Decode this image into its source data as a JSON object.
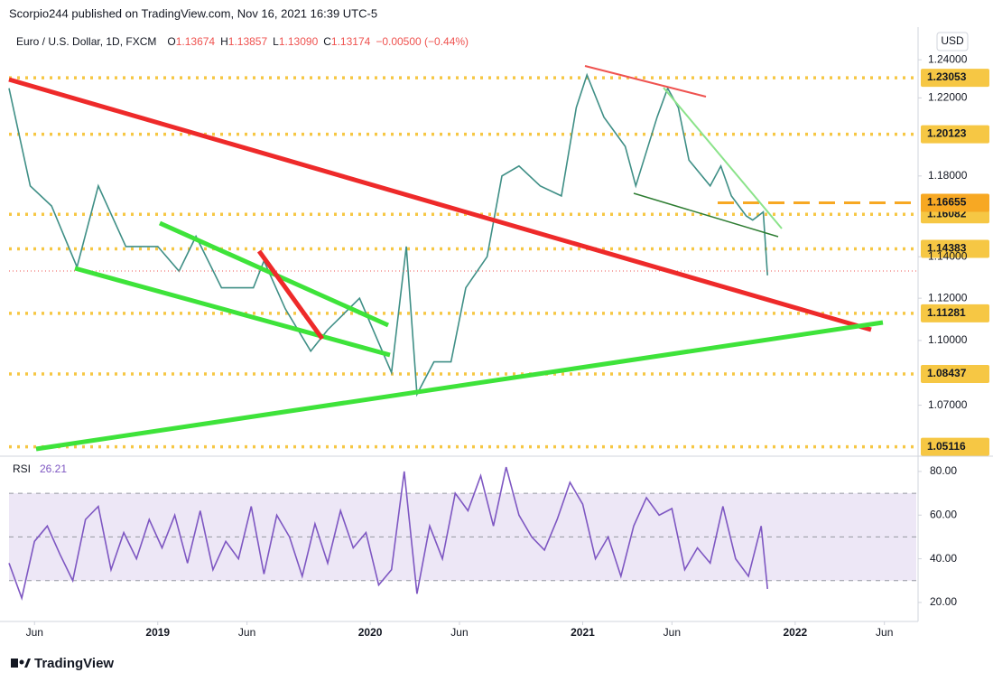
{
  "header": {
    "published": "Scorpio244 published on TradingView.com, Nov 16, 2021 16:39 UTC-5",
    "symbol": "Euro / U.S. Dollar, 1D, FXCM",
    "ohlc": [
      [
        "O",
        "1.13674"
      ],
      [
        "H",
        "1.13857"
      ],
      [
        "L",
        "1.13090"
      ],
      [
        "C",
        "1.13174"
      ]
    ],
    "change": "−0.00500 (−0.44%)",
    "currency": "USD"
  },
  "footer": {
    "brand": "TradingView"
  },
  "chart_data": [
    {
      "type": "line",
      "log_scale": true,
      "color": "#3f8f86",
      "x": [
        2018.3,
        2018.4,
        2018.5,
        2018.62,
        2018.72,
        2018.85,
        2019.0,
        2019.1,
        2019.18,
        2019.3,
        2019.45,
        2019.5,
        2019.6,
        2019.72,
        2019.8,
        2019.95,
        2020.1,
        2020.17,
        2020.22,
        2020.3,
        2020.38,
        2020.45,
        2020.55,
        2020.62,
        2020.7,
        2020.8,
        2020.9,
        2020.97,
        2021.02,
        2021.1,
        2021.2,
        2021.25,
        2021.35,
        2021.4,
        2021.45,
        2021.5,
        2021.6,
        2021.65,
        2021.7,
        2021.77,
        2021.8,
        2021.85,
        2021.87
      ],
      "values": [
        1.225,
        1.175,
        1.165,
        1.135,
        1.175,
        1.145,
        1.145,
        1.133,
        1.15,
        1.125,
        1.125,
        1.138,
        1.115,
        1.095,
        1.105,
        1.12,
        1.085,
        1.145,
        1.075,
        1.09,
        1.09,
        1.125,
        1.14,
        1.18,
        1.185,
        1.175,
        1.17,
        1.215,
        1.232,
        1.21,
        1.195,
        1.175,
        1.21,
        1.225,
        1.215,
        1.188,
        1.175,
        1.185,
        1.17,
        1.16,
        1.158,
        1.162,
        1.131
      ],
      "xlim": [
        2018.3,
        2022.57
      ],
      "xticks": [
        {
          "value": 2018.42,
          "label": "Jun"
        },
        2019,
        {
          "value": 2019.42,
          "label": "Jun"
        },
        2020,
        {
          "value": 2020.42,
          "label": "Jun"
        },
        2021,
        {
          "value": 2021.42,
          "label": "Jun"
        },
        2022,
        {
          "value": 2022.42,
          "label": "Jun"
        }
      ],
      "ylim": [
        1.049,
        1.255
      ],
      "yticks": [
        {
          "value": 1.24,
          "label": "1.24000"
        },
        {
          "value": 1.22,
          "label": "1.22000"
        },
        {
          "value": 1.18,
          "label": "1.18000"
        },
        {
          "value": 1.14,
          "label": "1.14000"
        },
        {
          "value": 1.12,
          "label": "1.12000"
        },
        {
          "value": 1.1,
          "label": "1.10000"
        },
        {
          "value": 1.07,
          "label": "1.07000"
        }
      ],
      "levels": [
        1.23053,
        1.20123,
        1.16082,
        1.14383,
        1.11281,
        1.08437,
        1.05116
      ],
      "level_color": "#f6c744",
      "dashed_levels": [
        1.16655
      ],
      "dashed_level_color": "#f7a823"
    },
    {
      "type": "line",
      "title": "RSI",
      "color": "#7e57c2",
      "x": [
        2018.3,
        2018.36,
        2018.42,
        2018.48,
        2018.54,
        2018.6,
        2018.66,
        2018.72,
        2018.78,
        2018.84,
        2018.9,
        2018.96,
        2019.02,
        2019.08,
        2019.14,
        2019.2,
        2019.26,
        2019.32,
        2019.38,
        2019.44,
        2019.5,
        2019.56,
        2019.62,
        2019.68,
        2019.74,
        2019.8,
        2019.86,
        2019.92,
        2019.98,
        2020.04,
        2020.1,
        2020.16,
        2020.22,
        2020.28,
        2020.34,
        2020.4,
        2020.46,
        2020.52,
        2020.58,
        2020.64,
        2020.7,
        2020.76,
        2020.82,
        2020.88,
        2020.94,
        2021.0,
        2021.06,
        2021.12,
        2021.18,
        2021.24,
        2021.3,
        2021.36,
        2021.42,
        2021.48,
        2021.54,
        2021.6,
        2021.66,
        2021.72,
        2021.78,
        2021.84,
        2021.87
      ],
      "values": [
        38,
        22,
        48,
        55,
        42,
        30,
        58,
        64,
        35,
        52,
        40,
        58,
        45,
        60,
        38,
        62,
        35,
        48,
        40,
        64,
        33,
        60,
        50,
        32,
        56,
        38,
        62,
        45,
        52,
        28,
        35,
        80,
        24,
        55,
        40,
        70,
        62,
        78,
        55,
        82,
        60,
        50,
        44,
        58,
        75,
        65,
        40,
        50,
        32,
        55,
        68,
        60,
        63,
        35,
        45,
        38,
        64,
        40,
        32,
        55,
        26.21
      ],
      "last_value": 26.21,
      "xlim": [
        2018.3,
        2022.57
      ],
      "ylim": [
        14.6,
        84.1
      ],
      "yticks": [
        {
          "value": 80,
          "label": "80.00"
        },
        {
          "value": 60,
          "label": "60.00"
        },
        {
          "value": 40,
          "label": "40.00"
        },
        {
          "value": 20,
          "label": "20.00"
        }
      ],
      "band": [
        30,
        70
      ],
      "band_color": "#ede7f6",
      "hlines": [
        70,
        50,
        30
      ]
    }
  ]
}
